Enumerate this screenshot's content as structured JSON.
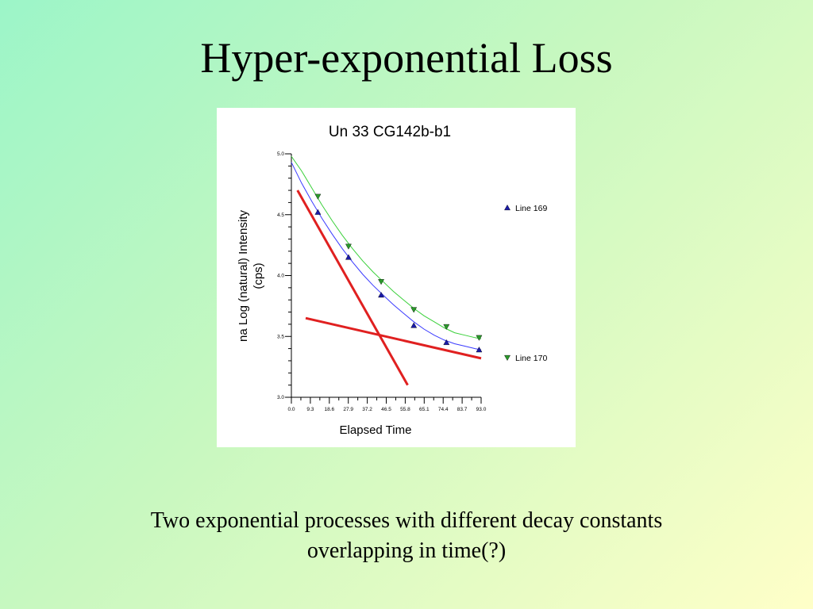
{
  "slide": {
    "title": "Hyper-exponential Loss",
    "caption_line1": "Two exponential processes with different decay constants",
    "caption_line2": "overlapping in time(?)"
  },
  "chart_data": {
    "type": "scatter",
    "title": "Un   33  CG142b-b1",
    "xlabel": "Elapsed Time",
    "ylabel_line1": "na Log (natural) Intensity",
    "ylabel_line2": "(cps)",
    "xlim": [
      0.0,
      93.0
    ],
    "ylim": [
      3.0,
      5.0
    ],
    "x_ticks": [
      "0.0",
      "9.3",
      "18.6",
      "27.9",
      "37.2",
      "46.5",
      "55.8",
      "65.1",
      "74.4",
      "83.7",
      "93.0"
    ],
    "y_ticks": [
      "3.0",
      "3.5",
      "4.0",
      "4.5",
      "5.0"
    ],
    "grid": false,
    "legend_position": "right",
    "series": [
      {
        "name": "Line 169",
        "marker": "triangle-up",
        "color": "#1a1aa8",
        "fit_color": "#3a3aff",
        "x": [
          13,
          28,
          44,
          60,
          76,
          92
        ],
        "y": [
          4.52,
          4.15,
          3.84,
          3.59,
          3.45,
          3.39
        ],
        "fit_x": [
          0,
          5,
          10,
          15,
          20,
          25,
          30,
          35,
          40,
          45,
          50,
          55,
          60,
          65,
          70,
          75,
          80,
          85,
          90,
          93
        ],
        "fit_y": [
          4.93,
          4.76,
          4.61,
          4.47,
          4.34,
          4.22,
          4.11,
          4.01,
          3.92,
          3.84,
          3.76,
          3.69,
          3.62,
          3.56,
          3.51,
          3.47,
          3.44,
          3.42,
          3.4,
          3.39
        ]
      },
      {
        "name": "Line 170",
        "marker": "triangle-down",
        "color": "#2a9a2a",
        "fit_color": "#3ad03a",
        "x": [
          13,
          28,
          44,
          60,
          76,
          92
        ],
        "y": [
          4.65,
          4.24,
          3.95,
          3.72,
          3.58,
          3.49
        ],
        "fit_x": [
          0,
          5,
          10,
          15,
          20,
          25,
          30,
          35,
          40,
          45,
          50,
          55,
          60,
          65,
          70,
          75,
          80,
          85,
          90,
          93
        ],
        "fit_y": [
          4.98,
          4.86,
          4.72,
          4.58,
          4.45,
          4.33,
          4.22,
          4.12,
          4.03,
          3.95,
          3.87,
          3.8,
          3.73,
          3.67,
          3.62,
          3.57,
          3.53,
          3.51,
          3.49,
          3.48
        ]
      }
    ],
    "annotation_lines": [
      {
        "name": "fast-decay-line",
        "color": "#e02020",
        "x": [
          3,
          57
        ],
        "y": [
          4.7,
          3.1
        ]
      },
      {
        "name": "slow-decay-line",
        "color": "#e02020",
        "x": [
          7,
          93
        ],
        "y": [
          3.65,
          3.32
        ]
      }
    ]
  }
}
